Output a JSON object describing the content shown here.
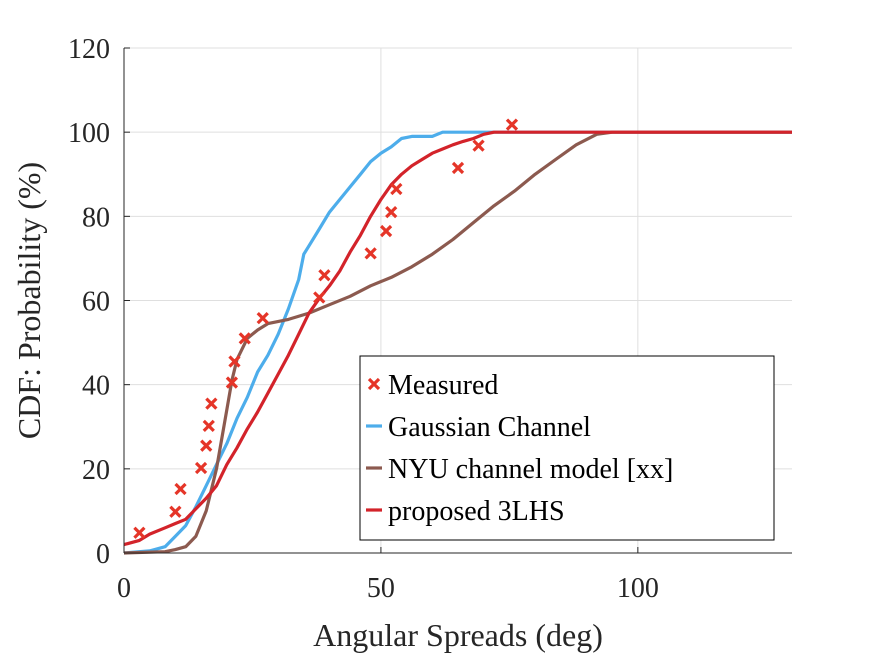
{
  "chart_data": {
    "type": "line",
    "title": "",
    "xlabel": "Angular Spreads (deg)",
    "ylabel": "CDF: Probability (%)",
    "xlim": [
      0,
      130
    ],
    "ylim": [
      0,
      120
    ],
    "xticks": [
      0,
      50,
      100
    ],
    "yticks": [
      0,
      20,
      40,
      60,
      80,
      100,
      120
    ],
    "grid": true,
    "legend_position": "bottom-right",
    "series": [
      {
        "name": "Measured",
        "kind": "scatter",
        "marker": "x",
        "color": "#e53528",
        "points": [
          [
            3,
            4.8
          ],
          [
            10,
            9.8
          ],
          [
            11,
            15.2
          ],
          [
            15,
            20.2
          ],
          [
            16,
            25.5
          ],
          [
            16.5,
            30.2
          ],
          [
            17,
            35.5
          ],
          [
            21,
            40.5
          ],
          [
            21.5,
            45.5
          ],
          [
            23.5,
            51
          ],
          [
            27,
            55.8
          ],
          [
            38,
            60.7
          ],
          [
            39,
            66
          ],
          [
            48,
            71.2
          ],
          [
            51,
            76.5
          ],
          [
            52,
            81
          ],
          [
            53,
            86.5
          ],
          [
            65,
            91.5
          ],
          [
            69,
            96.8
          ],
          [
            75.5,
            101.8
          ]
        ]
      },
      {
        "name": "Gaussian Channel",
        "kind": "line",
        "color": "#4dadeb",
        "points": [
          [
            0,
            0
          ],
          [
            5,
            0.5
          ],
          [
            8,
            1.5
          ],
          [
            10,
            4
          ],
          [
            12,
            6.5
          ],
          [
            14,
            11
          ],
          [
            16,
            16
          ],
          [
            18,
            21
          ],
          [
            20,
            26
          ],
          [
            22,
            32
          ],
          [
            24,
            37
          ],
          [
            26,
            43
          ],
          [
            28,
            47
          ],
          [
            30,
            52
          ],
          [
            32,
            58
          ],
          [
            34,
            65
          ],
          [
            35,
            71
          ],
          [
            36,
            73
          ],
          [
            38,
            77
          ],
          [
            40,
            81
          ],
          [
            42,
            84
          ],
          [
            44,
            87
          ],
          [
            46,
            90
          ],
          [
            48,
            93
          ],
          [
            50,
            95
          ],
          [
            52,
            96.5
          ],
          [
            54,
            98.5
          ],
          [
            56,
            99
          ],
          [
            60,
            99
          ],
          [
            62,
            100
          ],
          [
            70,
            100
          ],
          [
            130,
            100
          ]
        ]
      },
      {
        "name": "NYU channel model [xx]",
        "kind": "line",
        "color": "#8c5a4f",
        "points": [
          [
            0,
            0
          ],
          [
            8,
            0.3
          ],
          [
            10,
            0.8
          ],
          [
            12,
            1.5
          ],
          [
            14,
            4
          ],
          [
            16,
            10
          ],
          [
            18,
            20
          ],
          [
            20,
            34
          ],
          [
            21,
            41
          ],
          [
            22,
            46
          ],
          [
            24,
            51
          ],
          [
            26,
            53
          ],
          [
            28,
            54.5
          ],
          [
            32,
            55.5
          ],
          [
            36,
            57
          ],
          [
            40,
            59
          ],
          [
            44,
            61
          ],
          [
            48,
            63.5
          ],
          [
            52,
            65.5
          ],
          [
            56,
            68
          ],
          [
            60,
            71
          ],
          [
            64,
            74.5
          ],
          [
            68,
            78.5
          ],
          [
            72,
            82.5
          ],
          [
            76,
            86
          ],
          [
            80,
            90
          ],
          [
            84,
            93.5
          ],
          [
            88,
            97
          ],
          [
            92,
            99.5
          ],
          [
            95,
            100
          ],
          [
            130,
            100
          ]
        ]
      },
      {
        "name": "proposed 3LHS",
        "kind": "line",
        "color": "#d3232a",
        "points": [
          [
            0,
            2
          ],
          [
            3,
            3
          ],
          [
            5,
            4.5
          ],
          [
            8,
            6
          ],
          [
            10,
            7
          ],
          [
            12,
            8
          ],
          [
            14,
            10.5
          ],
          [
            16,
            13
          ],
          [
            18,
            16
          ],
          [
            20,
            21
          ],
          [
            22,
            25
          ],
          [
            24,
            29.5
          ],
          [
            26,
            33.5
          ],
          [
            28,
            38
          ],
          [
            30,
            42.5
          ],
          [
            32,
            47
          ],
          [
            34,
            52
          ],
          [
            36,
            57
          ],
          [
            38,
            60.5
          ],
          [
            40,
            63.5
          ],
          [
            42,
            67
          ],
          [
            44,
            71.5
          ],
          [
            46,
            75.5
          ],
          [
            48,
            80
          ],
          [
            50,
            84
          ],
          [
            52,
            87.5
          ],
          [
            54,
            90
          ],
          [
            56,
            92
          ],
          [
            58,
            93.5
          ],
          [
            60,
            95
          ],
          [
            62,
            96
          ],
          [
            64,
            97
          ],
          [
            66,
            97.8
          ],
          [
            68,
            98.5
          ],
          [
            70,
            99.5
          ],
          [
            72,
            100
          ],
          [
            130,
            100
          ]
        ]
      }
    ]
  }
}
